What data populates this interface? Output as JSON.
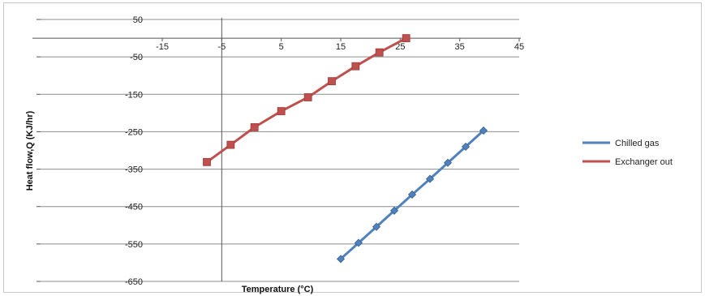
{
  "chart_data": {
    "type": "line",
    "title": "",
    "xlabel": "Temperature (°C)",
    "ylabel": "Heat flow,Q (KJ/hr)",
    "xlim": [
      -15,
      45
    ],
    "ylim": [
      -650,
      50
    ],
    "xticks": [
      -15,
      -5,
      5,
      15,
      25,
      35,
      45
    ],
    "yticks": [
      50,
      -50,
      -150,
      -250,
      -350,
      -450,
      -550,
      -650
    ],
    "xtick_labels": [
      "-15",
      "-5",
      "5",
      "15",
      "25",
      "35",
      "45"
    ],
    "ytick_labels": [
      "50",
      "-50",
      "-150",
      "-250",
      "-350",
      "-450",
      "-550",
      "-650"
    ],
    "grid": true,
    "legend_position": "right",
    "series": [
      {
        "name": "Chilled gas",
        "color": "#4f81bd",
        "marker": "diamond",
        "x": [
          15,
          18,
          21,
          24,
          27,
          30,
          33,
          36,
          39
        ],
        "y": [
          -590,
          -547,
          -504,
          -461,
          -418,
          -376,
          -333,
          -290,
          -247
        ]
      },
      {
        "name": "Exchanger out",
        "color": "#c0504d",
        "marker": "square",
        "x": [
          -7.5,
          -3.5,
          0.5,
          5,
          9.5,
          13.5,
          17.5,
          21.5,
          26
        ],
        "y": [
          -331,
          -285,
          -238,
          -195,
          -158,
          -115,
          -75,
          -38,
          0
        ]
      }
    ]
  }
}
